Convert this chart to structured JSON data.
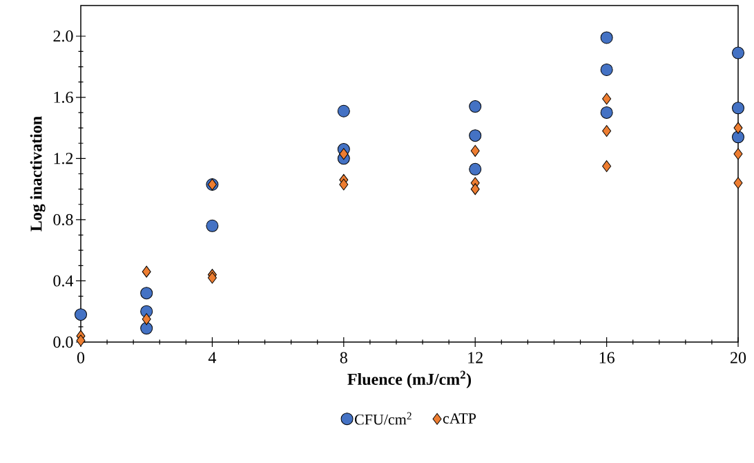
{
  "chart_data": {
    "type": "scatter",
    "xlabel": "Fluence (mJ/cm$^{2}$)",
    "ylabel": "Log inactivation",
    "xlim": [
      0,
      20
    ],
    "ylim": [
      0,
      2.2
    ],
    "xticks": [
      0,
      4,
      8,
      12,
      16,
      20
    ],
    "yticks": [
      {
        "value": 0,
        "label": "0.0"
      },
      {
        "value": 0.4,
        "label": "0.4"
      },
      {
        "value": 0.8,
        "label": "0.8"
      },
      {
        "value": 1.2,
        "label": "1.2"
      },
      {
        "value": 1.6,
        "label": "1.6"
      },
      {
        "value": 2.0,
        "label": "2.0"
      }
    ],
    "legend": "bottom",
    "series": [
      {
        "name": "CFU/cm$^{2}$",
        "color": "#4472c4",
        "marker": "circle",
        "x": [
          0,
          2,
          2,
          2,
          4,
          4,
          8,
          8,
          8,
          12,
          12,
          12,
          16,
          16,
          16,
          20,
          20,
          20
        ],
        "values": [
          0.18,
          0.32,
          0.2,
          0.09,
          1.03,
          0.76,
          1.51,
          1.26,
          1.2,
          1.54,
          1.35,
          1.13,
          1.99,
          1.78,
          1.5,
          1.89,
          1.53,
          1.34
        ]
      },
      {
        "name": "cATP",
        "color": "#ed7d31",
        "marker": "diamond",
        "x": [
          0,
          0,
          2,
          2,
          4,
          4,
          4,
          8,
          8,
          8,
          12,
          12,
          12,
          16,
          16,
          16,
          20,
          20,
          20
        ],
        "values": [
          0.04,
          0.01,
          0.46,
          0.15,
          1.03,
          0.44,
          0.42,
          1.23,
          1.06,
          1.03,
          1.25,
          1.04,
          1.0,
          1.59,
          1.38,
          1.15,
          1.4,
          1.23,
          1.04
        ]
      }
    ]
  }
}
